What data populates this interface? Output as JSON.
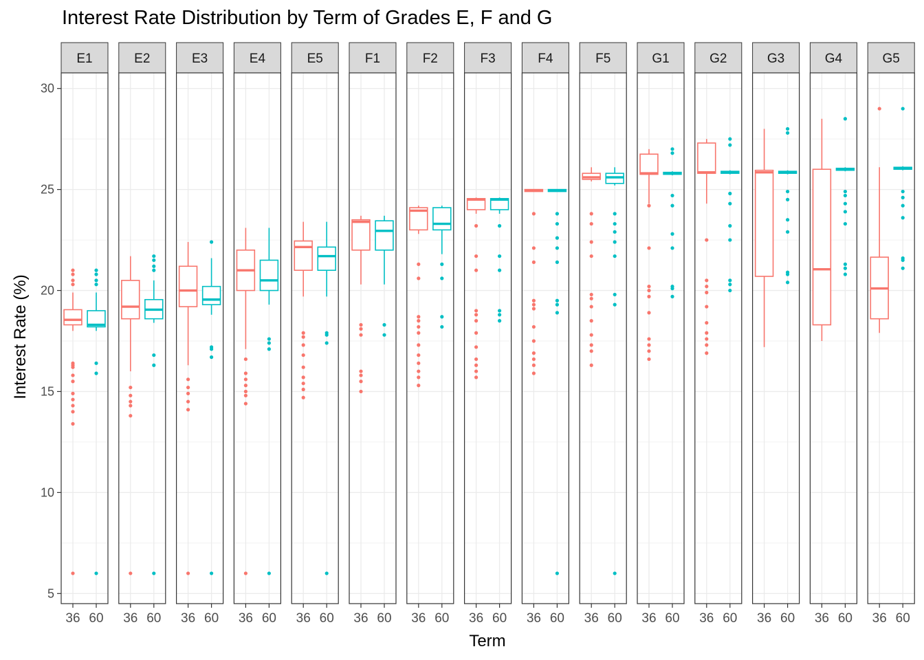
{
  "chart_data": {
    "type": "boxplot",
    "title": "Interest Rate Distribution by Term of Grades E, F and G",
    "xlabel": "Term",
    "ylabel": "Interest Rate (%)",
    "ylim": [
      5,
      30
    ],
    "yticks": [
      5,
      10,
      15,
      20,
      25,
      30
    ],
    "x_categories": [
      "36",
      "60"
    ],
    "grid": true,
    "colors": {
      "36": "#F8766D",
      "60": "#00BFC4"
    },
    "facets": [
      {
        "label": "E1",
        "boxes": [
          {
            "term": "36",
            "q1": 18.3,
            "median": 18.55,
            "q3": 19.05,
            "lower": 18.0,
            "upper": 19.9,
            "outliers": [
              21.0,
              20.8,
              20.5,
              20.3,
              16.4,
              16.3,
              16.2,
              15.8,
              15.5,
              14.9,
              14.6,
              14.3,
              14.0,
              13.4,
              6.0
            ]
          },
          {
            "term": "60",
            "q1": 18.2,
            "median": 18.3,
            "q3": 19.0,
            "lower": 18.0,
            "upper": 19.9,
            "outliers": [
              21.0,
              20.8,
              20.5,
              20.3,
              16.4,
              15.9,
              6.0
            ]
          }
        ]
      },
      {
        "label": "E2",
        "boxes": [
          {
            "term": "36",
            "q1": 18.6,
            "median": 19.2,
            "q3": 20.5,
            "lower": 16.0,
            "upper": 21.7,
            "outliers": [
              15.2,
              14.8,
              14.5,
              14.3,
              13.8,
              6.0
            ]
          },
          {
            "term": "60",
            "q1": 18.6,
            "median": 19.05,
            "q3": 19.55,
            "lower": 18.4,
            "upper": 20.5,
            "outliers": [
              21.7,
              21.5,
              21.2,
              21.0,
              16.8,
              16.3,
              6.0
            ]
          }
        ]
      },
      {
        "label": "E3",
        "boxes": [
          {
            "term": "36",
            "q1": 19.2,
            "median": 20.0,
            "q3": 21.2,
            "lower": 16.3,
            "upper": 22.4,
            "outliers": [
              15.6,
              15.2,
              14.9,
              14.5,
              14.1,
              6.0
            ]
          },
          {
            "term": "60",
            "q1": 19.3,
            "median": 19.55,
            "q3": 20.2,
            "lower": 18.8,
            "upper": 21.6,
            "outliers": [
              22.4,
              17.2,
              17.1,
              16.7,
              6.0
            ]
          }
        ]
      },
      {
        "label": "E4",
        "boxes": [
          {
            "term": "36",
            "q1": 20.0,
            "median": 21.0,
            "q3": 22.0,
            "lower": 17.1,
            "upper": 23.1,
            "outliers": [
              16.6,
              15.9,
              15.6,
              15.3,
              15.0,
              14.8,
              14.4,
              6.0
            ]
          },
          {
            "term": "60",
            "q1": 20.0,
            "median": 20.5,
            "q3": 21.5,
            "lower": 19.3,
            "upper": 23.1,
            "outliers": [
              17.6,
              17.4,
              17.1,
              6.0
            ]
          }
        ]
      },
      {
        "label": "E5",
        "boxes": [
          {
            "term": "36",
            "q1": 21.0,
            "median": 22.15,
            "q3": 22.45,
            "lower": 19.7,
            "upper": 23.4,
            "outliers": [
              17.9,
              17.7,
              17.3,
              16.8,
              16.2,
              15.7,
              15.4,
              15.1,
              14.7
            ]
          },
          {
            "term": "60",
            "q1": 21.0,
            "median": 21.7,
            "q3": 22.15,
            "lower": 19.7,
            "upper": 23.4,
            "outliers": [
              17.9,
              17.8,
              17.4,
              6.0
            ]
          }
        ]
      },
      {
        "label": "F1",
        "boxes": [
          {
            "term": "36",
            "q1": 22.0,
            "median": 23.4,
            "q3": 23.5,
            "lower": 20.3,
            "upper": 23.7,
            "outliers": [
              18.3,
              18.1,
              17.8,
              16.0,
              15.8,
              15.5,
              15.0
            ]
          },
          {
            "term": "60",
            "q1": 22.0,
            "median": 22.95,
            "q3": 23.45,
            "lower": 20.3,
            "upper": 23.7,
            "outliers": [
              18.3,
              17.8
            ]
          }
        ]
      },
      {
        "label": "F2",
        "boxes": [
          {
            "term": "36",
            "q1": 23.0,
            "median": 23.95,
            "q3": 24.1,
            "lower": 22.8,
            "upper": 24.2,
            "outliers": [
              21.3,
              20.6,
              18.7,
              18.5,
              18.2,
              17.9,
              17.3,
              16.8,
              16.4,
              16.0,
              15.7,
              15.3
            ]
          },
          {
            "term": "60",
            "q1": 23.0,
            "median": 23.3,
            "q3": 24.1,
            "lower": 21.8,
            "upper": 24.2,
            "outliers": [
              21.3,
              20.6,
              18.7,
              18.2
            ]
          }
        ]
      },
      {
        "label": "F3",
        "boxes": [
          {
            "term": "36",
            "q1": 24.0,
            "median": 24.5,
            "q3": 24.55,
            "lower": 23.8,
            "upper": 24.6,
            "outliers": [
              23.2,
              21.7,
              21.0,
              19.0,
              18.8,
              18.5,
              17.9,
              17.2,
              16.6,
              16.3,
              16.0,
              15.7
            ]
          },
          {
            "term": "60",
            "q1": 24.0,
            "median": 24.5,
            "q3": 24.55,
            "lower": 23.8,
            "upper": 24.6,
            "outliers": [
              23.2,
              21.7,
              21.0,
              19.0,
              18.8,
              18.5
            ]
          }
        ]
      },
      {
        "label": "F4",
        "boxes": [
          {
            "term": "36",
            "q1": 24.9,
            "median": 24.95,
            "q3": 25.0,
            "lower": 24.9,
            "upper": 25.0,
            "outliers": [
              23.8,
              22.1,
              21.4,
              19.5,
              19.3,
              19.1,
              18.2,
              17.5,
              16.9,
              16.6,
              16.3,
              15.9
            ]
          },
          {
            "term": "60",
            "q1": 24.9,
            "median": 24.95,
            "q3": 25.0,
            "lower": 24.9,
            "upper": 25.0,
            "outliers": [
              23.8,
              23.3,
              22.6,
              22.1,
              21.4,
              19.5,
              19.3,
              18.9,
              6.0
            ]
          }
        ]
      },
      {
        "label": "F5",
        "boxes": [
          {
            "term": "36",
            "q1": 25.5,
            "median": 25.6,
            "q3": 25.8,
            "lower": 25.4,
            "upper": 26.1,
            "outliers": [
              23.8,
              23.3,
              22.4,
              21.7,
              19.8,
              19.6,
              19.2,
              18.5,
              17.8,
              17.3,
              17.0,
              16.3
            ]
          },
          {
            "term": "60",
            "q1": 25.3,
            "median": 25.6,
            "q3": 25.8,
            "lower": 25.2,
            "upper": 26.1,
            "outliers": [
              23.8,
              23.3,
              22.9,
              22.4,
              21.7,
              19.8,
              19.3,
              6.0
            ]
          }
        ]
      },
      {
        "label": "G1",
        "boxes": [
          {
            "term": "36",
            "q1": 25.75,
            "median": 25.8,
            "q3": 26.75,
            "lower": 24.3,
            "upper": 27.0,
            "outliers": [
              24.2,
              22.1,
              20.2,
              20.0,
              19.7,
              18.9,
              17.6,
              17.3,
              17.0,
              16.6
            ]
          },
          {
            "term": "60",
            "q1": 25.75,
            "median": 25.8,
            "q3": 25.85,
            "lower": 25.7,
            "upper": 25.9,
            "outliers": [
              27.0,
              26.8,
              24.7,
              24.2,
              22.8,
              22.1,
              20.2,
              20.1,
              19.7
            ]
          }
        ]
      },
      {
        "label": "G2",
        "boxes": [
          {
            "term": "36",
            "q1": 25.8,
            "median": 25.85,
            "q3": 27.3,
            "lower": 24.3,
            "upper": 27.5,
            "outliers": [
              22.5,
              20.5,
              20.2,
              19.9,
              19.2,
              18.4,
              17.9,
              17.6,
              17.3,
              16.9
            ]
          },
          {
            "term": "60",
            "q1": 25.8,
            "median": 25.85,
            "q3": 25.9,
            "lower": 25.75,
            "upper": 25.95,
            "outliers": [
              27.5,
              27.2,
              24.8,
              24.3,
              23.2,
              22.5,
              20.5,
              20.3,
              20.0
            ]
          }
        ]
      },
      {
        "label": "G3",
        "boxes": [
          {
            "term": "36",
            "q1": 20.7,
            "median": 25.85,
            "q3": 25.95,
            "lower": 17.2,
            "upper": 28.0,
            "outliers": []
          },
          {
            "term": "60",
            "q1": 25.8,
            "median": 25.85,
            "q3": 25.9,
            "lower": 25.75,
            "upper": 25.95,
            "outliers": [
              28.0,
              27.8,
              24.9,
              24.5,
              23.5,
              22.9,
              20.9,
              20.8,
              20.4
            ]
          }
        ]
      },
      {
        "label": "G4",
        "boxes": [
          {
            "term": "36",
            "q1": 18.3,
            "median": 21.05,
            "q3": 26.0,
            "lower": 17.5,
            "upper": 28.5,
            "outliers": []
          },
          {
            "term": "60",
            "q1": 25.95,
            "median": 26.0,
            "q3": 26.05,
            "lower": 25.9,
            "upper": 26.1,
            "outliers": [
              28.5,
              24.9,
              24.7,
              24.3,
              23.9,
              23.3,
              21.3,
              21.1,
              20.8
            ]
          }
        ]
      },
      {
        "label": "G5",
        "boxes": [
          {
            "term": "36",
            "q1": 18.6,
            "median": 20.1,
            "q3": 21.65,
            "lower": 17.9,
            "upper": 26.1,
            "outliers": [
              29.0
            ]
          },
          {
            "term": "60",
            "q1": 26.0,
            "median": 26.05,
            "q3": 26.1,
            "lower": 25.95,
            "upper": 26.15,
            "outliers": [
              29.0,
              24.9,
              24.6,
              24.2,
              23.6,
              21.6,
              21.5,
              21.1
            ]
          }
        ]
      }
    ]
  }
}
